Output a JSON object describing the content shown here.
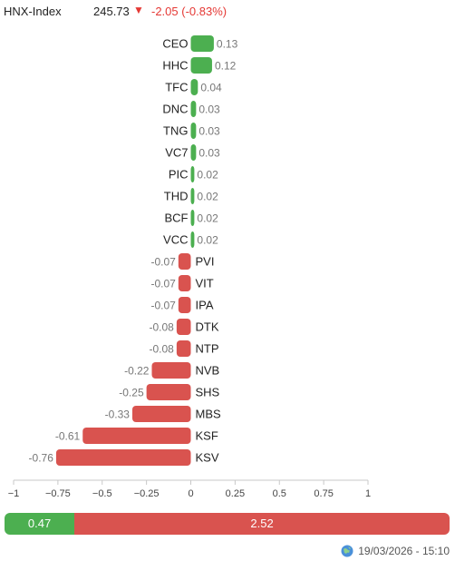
{
  "header": {
    "index_name": "HNX-Index",
    "index_value": "245.73",
    "arrow": "▼",
    "index_change": "-2.05 (-0.83%)"
  },
  "chart_data": {
    "type": "bar",
    "orientation": "horizontal",
    "categories": [
      "CEO",
      "HHC",
      "TFC",
      "DNC",
      "TNG",
      "VC7",
      "PIC",
      "THD",
      "BCF",
      "VCC",
      "PVI",
      "VIT",
      "IPA",
      "DTK",
      "NTP",
      "NVB",
      "SHS",
      "MBS",
      "KSF",
      "KSV"
    ],
    "values": [
      0.13,
      0.12,
      0.04,
      0.03,
      0.03,
      0.03,
      0.02,
      0.02,
      0.02,
      0.02,
      -0.07,
      -0.07,
      -0.07,
      -0.08,
      -0.08,
      -0.22,
      -0.25,
      -0.33,
      -0.61,
      -0.76
    ],
    "value_labels": [
      "0.13",
      "0.12",
      "0.04",
      "0.03",
      "0.03",
      "0.03",
      "0.02",
      "0.02",
      "0.02",
      "0.02",
      "-0.07",
      "-0.07",
      "-0.07",
      "-0.08",
      "-0.08",
      "-0.22",
      "-0.25",
      "-0.33",
      "-0.61",
      "-0.76"
    ],
    "xlim": [
      -1,
      1
    ],
    "ticks": [
      -1,
      -0.75,
      -0.5,
      -0.25,
      0,
      0.25,
      0.5,
      0.75,
      1
    ],
    "tick_labels": [
      "−1",
      "−0.75",
      "−0.5",
      "−0.25",
      "0",
      "0.25",
      "0.5",
      "0.75",
      "1"
    ],
    "colors": {
      "positive": "#4caf50",
      "negative": "#d9534f"
    },
    "grid": false
  },
  "breadth": {
    "advance_value": 0.47,
    "decline_value": 2.52,
    "advance_label": "0.47",
    "decline_label": "2.52"
  },
  "footer": {
    "timestamp": "19/03/2026 - 15:10",
    "icon": "globe-icon"
  }
}
